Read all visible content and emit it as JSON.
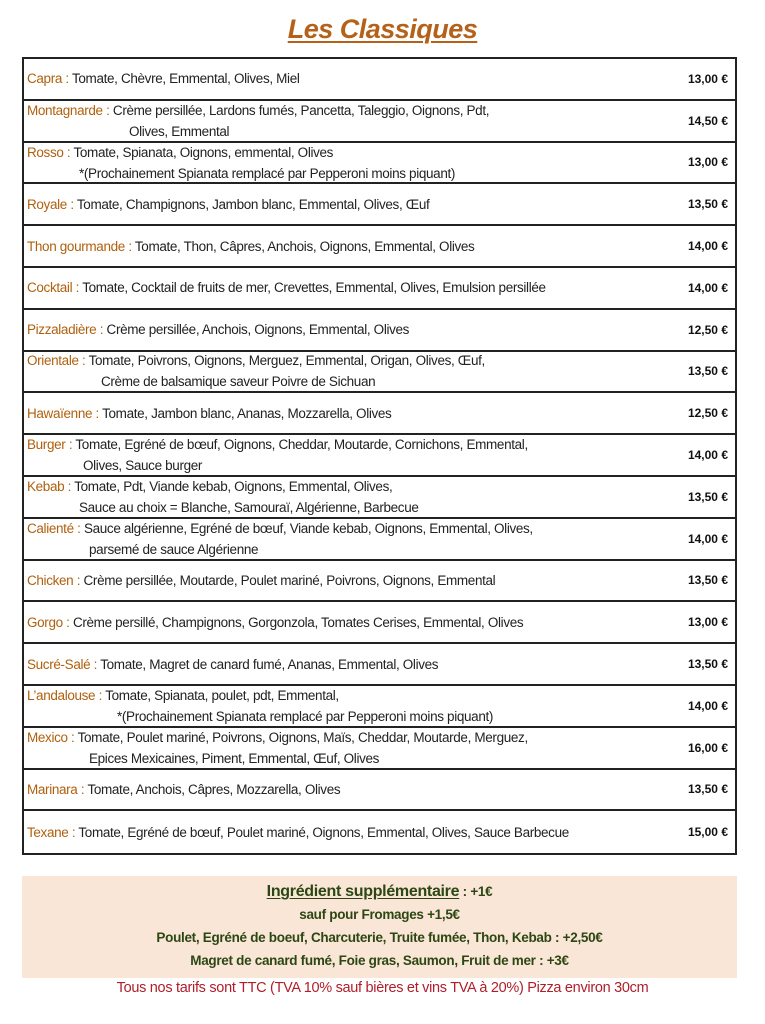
{
  "title": "Les Classiques",
  "colors": {
    "title": "#b5611a",
    "name": "#b0600f",
    "extras_bg": "#f9e6d6",
    "extras_text": "#2c4713",
    "footer": "#b01e2a"
  },
  "pizzas": [
    {
      "name": "Capra :",
      "line1": " Tomate, Chèvre, Emmental, Olives, Miel",
      "line2": "",
      "price": "13,00 €"
    },
    {
      "name": "Montagnarde :",
      "line1": " Crème persillée, Lardons fumés, Pancetta, Taleggio, Oignons, Pdt,",
      "line2": "Olives, Emmental",
      "indent": 102,
      "price": "14,50 €"
    },
    {
      "name": "Rosso :",
      "line1": " Tomate, Spianata, Oignons, emmental, Olives",
      "line2": "*(Prochainement Spianata remplacé par Pepperoni moins piquant)",
      "indent": 52,
      "price": "13,00 €"
    },
    {
      "name": "Royale :",
      "line1": " Tomate, Champignons, Jambon blanc, Emmental, Olives, Œuf",
      "line2": "",
      "price": "13,50 €"
    },
    {
      "name": "Thon gourmande :",
      "line1": " Tomate, Thon, Câpres, Anchois, Oignons, Emmental, Olives",
      "line2": "",
      "price": "14,00 €"
    },
    {
      "name": "Cocktail :",
      "line1": " Tomate, Cocktail de fruits de mer, Crevettes, Emmental, Olives, Emulsion persillée",
      "line2": "",
      "price": "14,00 €"
    },
    {
      "name": "Pizzaladière :",
      "line1": " Crème persillée, Anchois, Oignons, Emmental, Olives",
      "line2": "",
      "price": "12,50 €"
    },
    {
      "name": "Orientale :",
      "line1": " Tomate, Poivrons, Oignons, Merguez, Emmental, Origan, Olives, Œuf,",
      "line2": "Crème de balsamique saveur Poivre de Sichuan",
      "indent": 74,
      "price": "13,50 €"
    },
    {
      "name": "Hawaïenne :",
      "line1": " Tomate, Jambon blanc, Ananas, Mozzarella, Olives",
      "line2": "",
      "price": "12,50 €"
    },
    {
      "name": "Burger :",
      "line1": " Tomate, Egréné de bœuf, Oignons, Cheddar, Moutarde, Cornichons, Emmental,",
      "line2": "Olives, Sauce burger",
      "indent": 56,
      "price": "14,00 €"
    },
    {
      "name": "Kebab :",
      "line1": " Tomate, Pdt, Viande kebab, Oignons, Emmental, Olives,",
      "line2": "Sauce au choix = Blanche, Samouraï, Algérienne, Barbecue",
      "indent": 52,
      "price": "13,50 €"
    },
    {
      "name": "Calienté :",
      "line1": " Sauce algérienne, Egréné de bœuf, Viande kebab, Oignons, Emmental, Olives,",
      "line2": "parsemé de sauce Algérienne",
      "indent": 62,
      "price": "14,00 €"
    },
    {
      "name": "Chicken :",
      "line1": " Crème persillée, Moutarde, Poulet mariné, Poivrons, Oignons, Emmental",
      "line2": "",
      "price": "13,50 €"
    },
    {
      "name": "Gorgo :",
      "line1": " Crème persillé, Champignons, Gorgonzola, Tomates Cerises, Emmental, Olives",
      "line2": "",
      "price": "13,00 €"
    },
    {
      "name": "Sucré-Salé :",
      "line1": " Tomate, Magret de canard fumé, Ananas, Emmental, Olives",
      "line2": "",
      "price": "13,50 €"
    },
    {
      "name": "L’andalouse :",
      "line1": " Tomate, Spianata, poulet, pdt, Emmental,",
      "line2": "*(Prochainement Spianata remplacé par Pepperoni moins piquant)",
      "indent": 90,
      "price": "14,00 €"
    },
    {
      "name": "Mexico :",
      "line1": " Tomate, Poulet mariné, Poivrons, Oignons, Maïs, Cheddar, Moutarde, Merguez,",
      "line2": "Epices Mexicaines, Piment, Emmental, Œuf, Olives",
      "indent": 62,
      "price": "16,00 €"
    },
    {
      "name": "Marinara :",
      "line1": " Tomate, Anchois, Câpres, Mozzarella, Olives",
      "line2": "",
      "price": "13,50 €"
    },
    {
      "name": "Texane :",
      "line1": " Tomate, Egréné de bœuf, Poulet mariné, Oignons, Emmental, Olives, Sauce Barbecue",
      "line2": "",
      "price": "15,00 €"
    }
  ],
  "extras": {
    "heading": "Ingrédient supplémentaire",
    "heading_price": " : +1€",
    "lines": [
      "sauf pour  Fromages +1,5€",
      "Poulet, Egréné de boeuf, Charcuterie, Truite fumée, Thon, Kebab : +2,50€",
      "Magret de canard fumé, Foie gras, Saumon, Fruit de mer : +3€"
    ]
  },
  "footer": "Tous nos tarifs sont TTC (TVA 10%  sauf bières et vins TVA à 20%)  Pizza environ 30cm"
}
